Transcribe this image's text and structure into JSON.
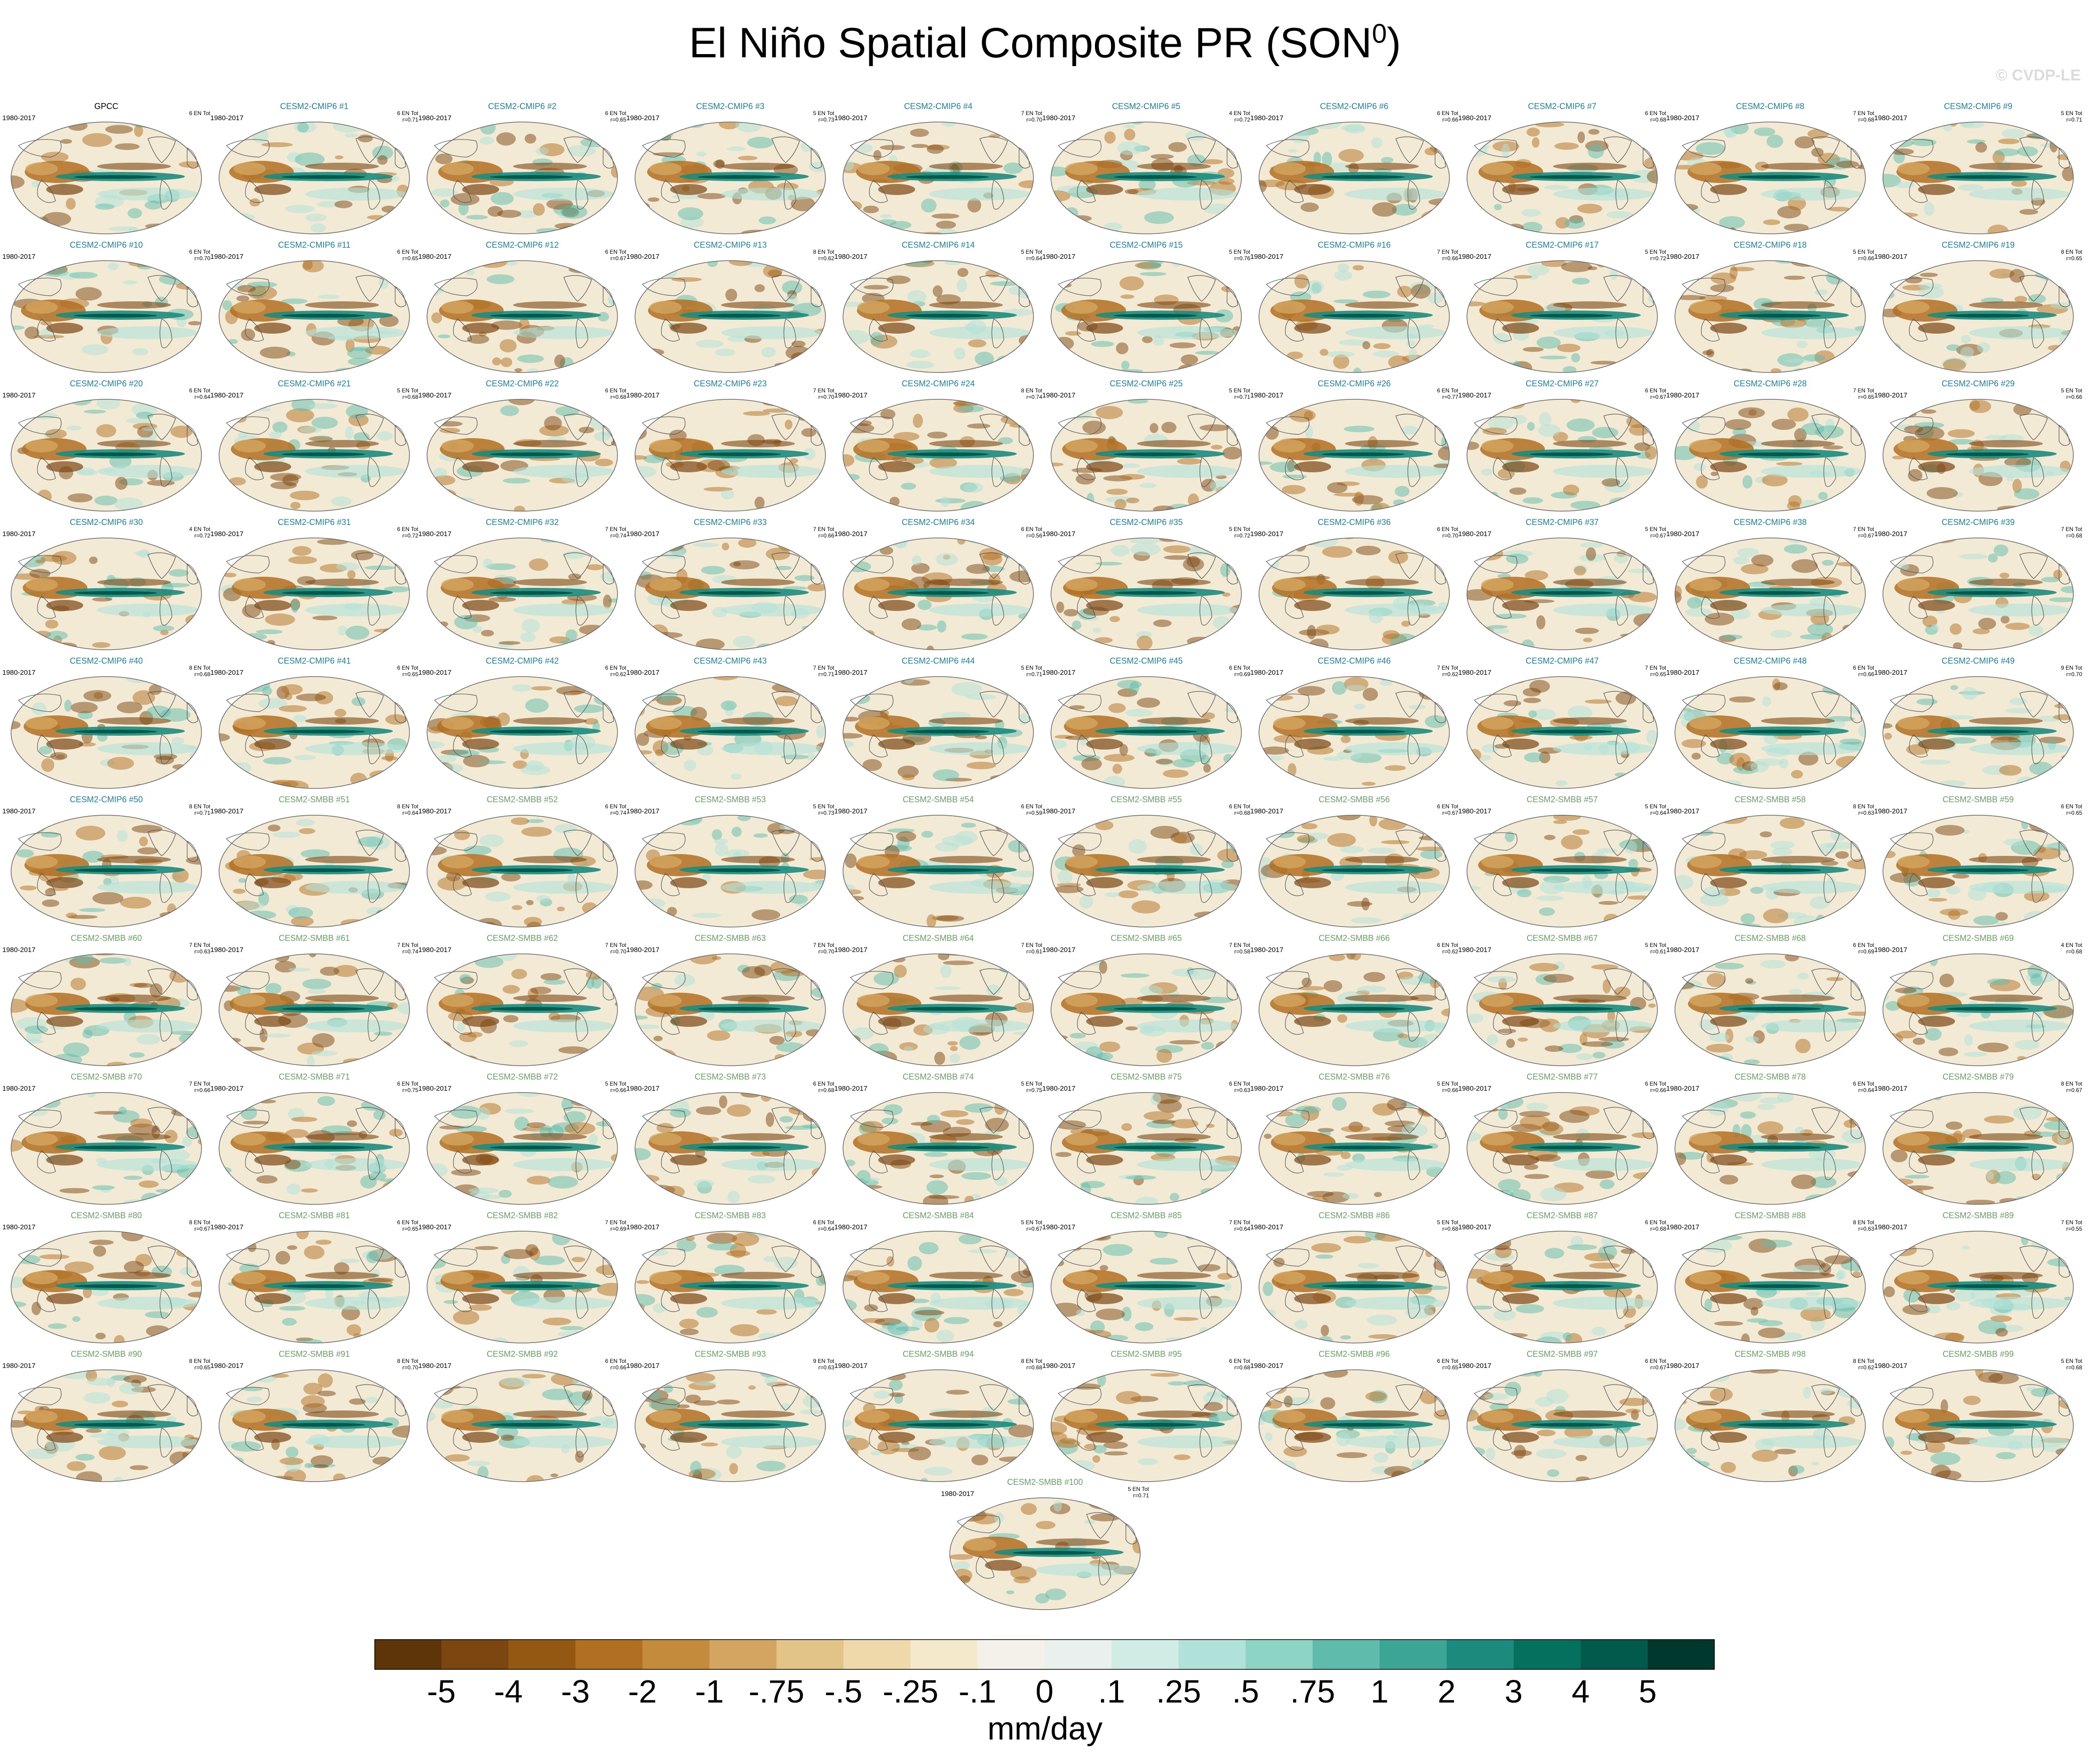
{
  "title": "El Niño Spatial Composite PR (SON",
  "title_superscript": "0",
  "title_close": ")",
  "watermark": "© CVDP-LE",
  "chart_data": {
    "type": "heatmap",
    "projection": "Robinson (global, Pacific-centered)",
    "variable": "PR",
    "season": "SON",
    "period": "1980-2017",
    "units": "mm/day",
    "colorbar": {
      "ticks": [
        "-5",
        "-4",
        "-3",
        "-2",
        "-1",
        "-.75",
        "-.5",
        "-.25",
        "-.1",
        "0",
        ".1",
        ".25",
        ".5",
        ".75",
        "1",
        "2",
        "3",
        "4",
        "5"
      ],
      "colors": [
        "#5e3409",
        "#7c4611",
        "#955813",
        "#b16f21",
        "#c48b3d",
        "#d3a560",
        "#e3c488",
        "#efd9ab",
        "#f5e9cb",
        "#f4f1ea",
        "#e9f0ee",
        "#d1ebe5",
        "#b1e2da",
        "#8ed4c5",
        "#5fbcad",
        "#3da596",
        "#1c8b7d",
        "#06705f",
        "#015a4b",
        "#01382d"
      ]
    },
    "panels": [
      {
        "title": "GPCC",
        "years": "1980-2017",
        "stat": "6 EN Tot",
        "group": "obs"
      },
      {
        "title": "CESM2-CMIP6 #1",
        "years": "1980-2017",
        "stat": "6 EN Tot\nr=0.71",
        "group": "cmip"
      },
      {
        "title": "CESM2-CMIP6 #2",
        "years": "1980-2017",
        "stat": "6 EN Tot\nr=0.65",
        "group": "cmip"
      },
      {
        "title": "CESM2-CMIP6 #3",
        "years": "1980-2017",
        "stat": "5 EN Tot\nr=0.73",
        "group": "cmip"
      },
      {
        "title": "CESM2-CMIP6 #4",
        "years": "1980-2017",
        "stat": "7 EN Tot\nr=0.70",
        "group": "cmip"
      },
      {
        "title": "CESM2-CMIP6 #5",
        "years": "1980-2017",
        "stat": "4 EN Tot\nr=0.72",
        "group": "cmip"
      },
      {
        "title": "CESM2-CMIP6 #6",
        "years": "1980-2017",
        "stat": "6 EN Tot\nr=0.66",
        "group": "cmip"
      },
      {
        "title": "CESM2-CMIP6 #7",
        "years": "1980-2017",
        "stat": "6 EN Tot\nr=0.68",
        "group": "cmip"
      },
      {
        "title": "CESM2-CMIP6 #8",
        "years": "1980-2017",
        "stat": "7 EN Tot\nr=0.68",
        "group": "cmip"
      },
      {
        "title": "CESM2-CMIP6 #9",
        "years": "1980-2017",
        "stat": "5 EN Tot\nr=0.71",
        "group": "cmip"
      },
      {
        "title": "CESM2-CMIP6 #10",
        "years": "1980-2017",
        "stat": "6 EN Tot\nr=0.70",
        "group": "cmip"
      },
      {
        "title": "CESM2-CMIP6 #11",
        "years": "1980-2017",
        "stat": "6 EN Tot\nr=0.65",
        "group": "cmip"
      },
      {
        "title": "CESM2-CMIP6 #12",
        "years": "1980-2017",
        "stat": "6 EN Tot\nr=0.67",
        "group": "cmip"
      },
      {
        "title": "CESM2-CMIP6 #13",
        "years": "1980-2017",
        "stat": "8 EN Tot\nr=0.62",
        "group": "cmip"
      },
      {
        "title": "CESM2-CMIP6 #14",
        "years": "1980-2017",
        "stat": "5 EN Tot\nr=0.64",
        "group": "cmip"
      },
      {
        "title": "CESM2-CMIP6 #15",
        "years": "1980-2017",
        "stat": "5 EN Tot\nr=0.76",
        "group": "cmip"
      },
      {
        "title": "CESM2-CMIP6 #16",
        "years": "1980-2017",
        "stat": "7 EN Tot\nr=0.66",
        "group": "cmip"
      },
      {
        "title": "CESM2-CMIP6 #17",
        "years": "1980-2017",
        "stat": "5 EN Tot\nr=0.72",
        "group": "cmip"
      },
      {
        "title": "CESM2-CMIP6 #18",
        "years": "1980-2017",
        "stat": "5 EN Tot\nr=0.66",
        "group": "cmip"
      },
      {
        "title": "CESM2-CMIP6 #19",
        "years": "1980-2017",
        "stat": "8 EN Tot\nr=0.65",
        "group": "cmip"
      },
      {
        "title": "CESM2-CMIP6 #20",
        "years": "1980-2017",
        "stat": "6 EN Tot\nr=0.64",
        "group": "cmip"
      },
      {
        "title": "CESM2-CMIP6 #21",
        "years": "1980-2017",
        "stat": "5 EN Tot\nr=0.68",
        "group": "cmip"
      },
      {
        "title": "CESM2-CMIP6 #22",
        "years": "1980-2017",
        "stat": "6 EN Tot\nr=0.68",
        "group": "cmip"
      },
      {
        "title": "CESM2-CMIP6 #23",
        "years": "1980-2017",
        "stat": "7 EN Tot\nr=0.70",
        "group": "cmip"
      },
      {
        "title": "CESM2-CMIP6 #24",
        "years": "1980-2017",
        "stat": "8 EN Tot\nr=0.74",
        "group": "cmip"
      },
      {
        "title": "CESM2-CMIP6 #25",
        "years": "1980-2017",
        "stat": "5 EN Tot\nr=0.71",
        "group": "cmip"
      },
      {
        "title": "CESM2-CMIP6 #26",
        "years": "1980-2017",
        "stat": "6 EN Tot\nr=0.77",
        "group": "cmip"
      },
      {
        "title": "CESM2-CMIP6 #27",
        "years": "1980-2017",
        "stat": "6 EN Tot\nr=0.67",
        "group": "cmip"
      },
      {
        "title": "CESM2-CMIP6 #28",
        "years": "1980-2017",
        "stat": "7 EN Tot\nr=0.65",
        "group": "cmip"
      },
      {
        "title": "CESM2-CMIP6 #29",
        "years": "1980-2017",
        "stat": "5 EN Tot\nr=0.66",
        "group": "cmip"
      },
      {
        "title": "CESM2-CMIP6 #30",
        "years": "1980-2017",
        "stat": "4 EN Tot\nr=0.72",
        "group": "cmip"
      },
      {
        "title": "CESM2-CMIP6 #31",
        "years": "1980-2017",
        "stat": "6 EN Tot\nr=0.72",
        "group": "cmip"
      },
      {
        "title": "CESM2-CMIP6 #32",
        "years": "1980-2017",
        "stat": "7 EN Tot\nr=0.74",
        "group": "cmip"
      },
      {
        "title": "CESM2-CMIP6 #33",
        "years": "1980-2017",
        "stat": "7 EN Tot\nr=0.66",
        "group": "cmip"
      },
      {
        "title": "CESM2-CMIP6 #34",
        "years": "1980-2017",
        "stat": "6 EN Tot\nr=0.56",
        "group": "cmip"
      },
      {
        "title": "CESM2-CMIP6 #35",
        "years": "1980-2017",
        "stat": "5 EN Tot\nr=0.72",
        "group": "cmip"
      },
      {
        "title": "CESM2-CMIP6 #36",
        "years": "1980-2017",
        "stat": "6 EN Tot\nr=0.70",
        "group": "cmip"
      },
      {
        "title": "CESM2-CMIP6 #37",
        "years": "1980-2017",
        "stat": "5 EN Tot\nr=0.67",
        "group": "cmip"
      },
      {
        "title": "CESM2-CMIP6 #38",
        "years": "1980-2017",
        "stat": "7 EN Tot\nr=0.67",
        "group": "cmip"
      },
      {
        "title": "CESM2-CMIP6 #39",
        "years": "1980-2017",
        "stat": "7 EN Tot\nr=0.68",
        "group": "cmip"
      },
      {
        "title": "CESM2-CMIP6 #40",
        "years": "1980-2017",
        "stat": "8 EN Tot\nr=0.68",
        "group": "cmip"
      },
      {
        "title": "CESM2-CMIP6 #41",
        "years": "1980-2017",
        "stat": "6 EN Tot\nr=0.65",
        "group": "cmip"
      },
      {
        "title": "CESM2-CMIP6 #42",
        "years": "1980-2017",
        "stat": "6 EN Tot\nr=0.62",
        "group": "cmip"
      },
      {
        "title": "CESM2-CMIP6 #43",
        "years": "1980-2017",
        "stat": "7 EN Tot\nr=0.71",
        "group": "cmip"
      },
      {
        "title": "CESM2-CMIP6 #44",
        "years": "1980-2017",
        "stat": "5 EN Tot\nr=0.71",
        "group": "cmip"
      },
      {
        "title": "CESM2-CMIP6 #45",
        "years": "1980-2017",
        "stat": "6 EN Tot\nr=0.69",
        "group": "cmip"
      },
      {
        "title": "CESM2-CMIP6 #46",
        "years": "1980-2017",
        "stat": "7 EN Tot\nr=0.62",
        "group": "cmip"
      },
      {
        "title": "CESM2-CMIP6 #47",
        "years": "1980-2017",
        "stat": "7 EN Tot\nr=0.65",
        "group": "cmip"
      },
      {
        "title": "CESM2-CMIP6 #48",
        "years": "1980-2017",
        "stat": "6 EN Tot\nr=0.66",
        "group": "cmip"
      },
      {
        "title": "CESM2-CMIP6 #49",
        "years": "1980-2017",
        "stat": "9 EN Tot\nr=0.70",
        "group": "cmip"
      },
      {
        "title": "CESM2-CMIP6 #50",
        "years": "1980-2017",
        "stat": "8 EN Tot\nr=0.71",
        "group": "cmip"
      },
      {
        "title": "CESM2-SMBB #51",
        "years": "1980-2017",
        "stat": "8 EN Tot\nr=0.64",
        "group": "smbb"
      },
      {
        "title": "CESM2-SMBB #52",
        "years": "1980-2017",
        "stat": "6 EN Tot\nr=0.74",
        "group": "smbb"
      },
      {
        "title": "CESM2-SMBB #53",
        "years": "1980-2017",
        "stat": "5 EN Tot\nr=0.73",
        "group": "smbb"
      },
      {
        "title": "CESM2-SMBB #54",
        "years": "1980-2017",
        "stat": "6 EN Tot\nr=0.59",
        "group": "smbb"
      },
      {
        "title": "CESM2-SMBB #55",
        "years": "1980-2017",
        "stat": "6 EN Tot\nr=0.68",
        "group": "smbb"
      },
      {
        "title": "CESM2-SMBB #56",
        "years": "1980-2017",
        "stat": "6 EN Tot\nr=0.67",
        "group": "smbb"
      },
      {
        "title": "CESM2-SMBB #57",
        "years": "1980-2017",
        "stat": "5 EN Tot\nr=0.64",
        "group": "smbb"
      },
      {
        "title": "CESM2-SMBB #58",
        "years": "1980-2017",
        "stat": "8 EN Tot\nr=0.63",
        "group": "smbb"
      },
      {
        "title": "CESM2-SMBB #59",
        "years": "1980-2017",
        "stat": "6 EN Tot\nr=0.65",
        "group": "smbb"
      },
      {
        "title": "CESM2-SMBB #60",
        "years": "1980-2017",
        "stat": "7 EN Tot\nr=0.63",
        "group": "smbb"
      },
      {
        "title": "CESM2-SMBB #61",
        "years": "1980-2017",
        "stat": "7 EN Tot\nr=0.74",
        "group": "smbb"
      },
      {
        "title": "CESM2-SMBB #62",
        "years": "1980-2017",
        "stat": "7 EN Tot\nr=0.70",
        "group": "smbb"
      },
      {
        "title": "CESM2-SMBB #63",
        "years": "1980-2017",
        "stat": "7 EN Tot\nr=0.70",
        "group": "smbb"
      },
      {
        "title": "CESM2-SMBB #64",
        "years": "1980-2017",
        "stat": "7 EN Tot\nr=0.61",
        "group": "smbb"
      },
      {
        "title": "CESM2-SMBB #65",
        "years": "1980-2017",
        "stat": "7 EN Tot\nr=0.58",
        "group": "smbb"
      },
      {
        "title": "CESM2-SMBB #66",
        "years": "1980-2017",
        "stat": "6 EN Tot\nr=0.62",
        "group": "smbb"
      },
      {
        "title": "CESM2-SMBB #67",
        "years": "1980-2017",
        "stat": "5 EN Tot\nr=0.61",
        "group": "smbb"
      },
      {
        "title": "CESM2-SMBB #68",
        "years": "1980-2017",
        "stat": "6 EN Tot\nr=0.69",
        "group": "smbb"
      },
      {
        "title": "CESM2-SMBB #69",
        "years": "1980-2017",
        "stat": "4 EN Tot\nr=0.68",
        "group": "smbb"
      },
      {
        "title": "CESM2-SMBB #70",
        "years": "1980-2017",
        "stat": "7 EN Tot\nr=0.66",
        "group": "smbb"
      },
      {
        "title": "CESM2-SMBB #71",
        "years": "1980-2017",
        "stat": "6 EN Tot\nr=0.75",
        "group": "smbb"
      },
      {
        "title": "CESM2-SMBB #72",
        "years": "1980-2017",
        "stat": "5 EN Tot\nr=0.66",
        "group": "smbb"
      },
      {
        "title": "CESM2-SMBB #73",
        "years": "1980-2017",
        "stat": "6 EN Tot\nr=0.68",
        "group": "smbb"
      },
      {
        "title": "CESM2-SMBB #74",
        "years": "1980-2017",
        "stat": "5 EN Tot\nr=0.75",
        "group": "smbb"
      },
      {
        "title": "CESM2-SMBB #75",
        "years": "1980-2017",
        "stat": "6 EN Tot\nr=0.63",
        "group": "smbb"
      },
      {
        "title": "CESM2-SMBB #76",
        "years": "1980-2017",
        "stat": "5 EN Tot\nr=0.66",
        "group": "smbb"
      },
      {
        "title": "CESM2-SMBB #77",
        "years": "1980-2017",
        "stat": "6 EN Tot\nr=0.66",
        "group": "smbb"
      },
      {
        "title": "CESM2-SMBB #78",
        "years": "1980-2017",
        "stat": "6 EN Tot\nr=0.64",
        "group": "smbb"
      },
      {
        "title": "CESM2-SMBB #79",
        "years": "1980-2017",
        "stat": "8 EN Tot\nr=0.67",
        "group": "smbb"
      },
      {
        "title": "CESM2-SMBB #80",
        "years": "1980-2017",
        "stat": "8 EN Tot\nr=0.67",
        "group": "smbb"
      },
      {
        "title": "CESM2-SMBB #81",
        "years": "1980-2017",
        "stat": "6 EN Tot\nr=0.65",
        "group": "smbb"
      },
      {
        "title": "CESM2-SMBB #82",
        "years": "1980-2017",
        "stat": "7 EN Tot\nr=0.69",
        "group": "smbb"
      },
      {
        "title": "CESM2-SMBB #83",
        "years": "1980-2017",
        "stat": "6 EN Tot\nr=0.64",
        "group": "smbb"
      },
      {
        "title": "CESM2-SMBB #84",
        "years": "1980-2017",
        "stat": "5 EN Tot\nr=0.67",
        "group": "smbb"
      },
      {
        "title": "CESM2-SMBB #85",
        "years": "1980-2017",
        "stat": "7 EN Tot\nr=0.64",
        "group": "smbb"
      },
      {
        "title": "CESM2-SMBB #86",
        "years": "1980-2017",
        "stat": "5 EN Tot\nr=0.68",
        "group": "smbb"
      },
      {
        "title": "CESM2-SMBB #87",
        "years": "1980-2017",
        "stat": "6 EN Tot\nr=0.68",
        "group": "smbb"
      },
      {
        "title": "CESM2-SMBB #88",
        "years": "1980-2017",
        "stat": "8 EN Tot\nr=0.63",
        "group": "smbb"
      },
      {
        "title": "CESM2-SMBB #89",
        "years": "1980-2017",
        "stat": "7 EN Tot\nr=0.55",
        "group": "smbb"
      },
      {
        "title": "CESM2-SMBB #90",
        "years": "1980-2017",
        "stat": "8 EN Tot\nr=0.65",
        "group": "smbb"
      },
      {
        "title": "CESM2-SMBB #91",
        "years": "1980-2017",
        "stat": "8 EN Tot\nr=0.70",
        "group": "smbb"
      },
      {
        "title": "CESM2-SMBB #92",
        "years": "1980-2017",
        "stat": "6 EN Tot\nr=0.66",
        "group": "smbb"
      },
      {
        "title": "CESM2-SMBB #93",
        "years": "1980-2017",
        "stat": "9 EN Tot\nr=0.63",
        "group": "smbb"
      },
      {
        "title": "CESM2-SMBB #94",
        "years": "1980-2017",
        "stat": "8 EN Tot\nr=0.68",
        "group": "smbb"
      },
      {
        "title": "CESM2-SMBB #95",
        "years": "1980-2017",
        "stat": "6 EN Tot\nr=0.68",
        "group": "smbb"
      },
      {
        "title": "CESM2-SMBB #96",
        "years": "1980-2017",
        "stat": "6 EN Tot\nr=0.65",
        "group": "smbb"
      },
      {
        "title": "CESM2-SMBB #97",
        "years": "1980-2017",
        "stat": "6 EN Tot\nr=0.67",
        "group": "smbb"
      },
      {
        "title": "CESM2-SMBB #98",
        "years": "1980-2017",
        "stat": "8 EN Tot\nr=0.62",
        "group": "smbb"
      },
      {
        "title": "CESM2-SMBB #99",
        "years": "1980-2017",
        "stat": "5 EN Tot\nr=0.68",
        "group": "smbb"
      },
      {
        "title": "CESM2-SMBB #100",
        "years": "1980-2017",
        "stat": "5 EN Tot\nr=0.71",
        "group": "smbb"
      }
    ]
  }
}
